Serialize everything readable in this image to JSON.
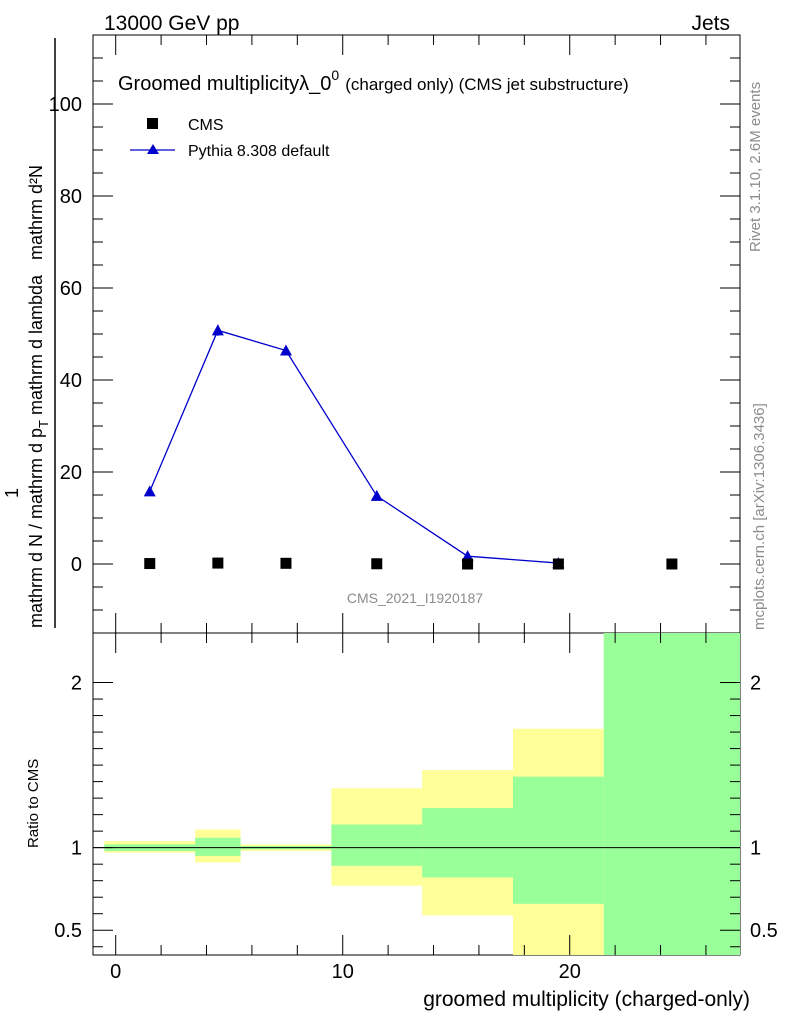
{
  "header": {
    "left": "13000 GeV pp",
    "right": "Jets"
  },
  "side_labels": {
    "rivet": "Rivet 3.1.10,  2.6M events",
    "mcplots": "mcplots.cern.ch [arXiv:1306.3436]"
  },
  "watermark": "CMS_2021_I1920187",
  "chart_data": [
    {
      "type": "line",
      "title_main": "Groomed multiplicityλ_0",
      "title_sup": "0",
      "title_small": "(charged only) (CMS jet substructure)",
      "ylabel_numerator": "mathrm d²N",
      "ylabel_den_lower": "mathrm d N / mathrm d p",
      "ylabel_den_upper": "mathrm d p",
      "ylabel_den_sub": "T",
      "ylabel_den_tail": "mathrm d lambda",
      "ylabel_den_mid": "mathrm d p",
      "ylabel_den_mid_sub": "T",
      "ylabel_den_mid_tail": " mathrm d lambda",
      "ylabel_one": "1",
      "xlim": [
        -1,
        27.5
      ],
      "ylim": [
        -15,
        115
      ],
      "yticks": [
        0,
        20,
        40,
        60,
        80,
        100
      ],
      "yticklabels": [
        "0",
        "20",
        "40",
        "60",
        "80",
        "100"
      ],
      "legend_position": "top-left",
      "series": [
        {
          "name": "CMS",
          "marker": "square",
          "color": "#000000",
          "x": [
            1.5,
            4.5,
            7.5,
            11.5,
            15.5,
            19.5,
            24.5
          ],
          "y": [
            0.1,
            0.2,
            0.15,
            0.05,
            0.0,
            0.0,
            0.0
          ]
        },
        {
          "name": "Pythia 8.308 default",
          "marker": "triangle",
          "color": "#0000cc",
          "x": [
            1.5,
            4.5,
            7.5,
            11.5,
            15.5,
            19.5
          ],
          "y": [
            15.8,
            50.8,
            46.4,
            14.8,
            1.7,
            0.2
          ]
        }
      ]
    },
    {
      "type": "area",
      "ylabel": "Ratio to CMS",
      "xlabel": "groomed multiplicity (charged-only)",
      "xlim": [
        -1,
        27.5
      ],
      "ylim": [
        0.35,
        2.3
      ],
      "xticks": [
        0,
        10,
        20
      ],
      "xticklabels": [
        "0",
        "10",
        "20"
      ],
      "yticks": [
        0.5,
        1,
        2
      ],
      "yticklabels": [
        "0.5",
        "1",
        "2"
      ],
      "reference": 1,
      "bands_yellow": [
        {
          "x0": -0.5,
          "x1": 3.5,
          "lo": 0.97,
          "hi": 1.04
        },
        {
          "x0": 3.5,
          "x1": 5.5,
          "lo": 0.91,
          "hi": 1.11
        },
        {
          "x0": 5.5,
          "x1": 9.5,
          "lo": 0.98,
          "hi": 1.02
        },
        {
          "x0": 9.5,
          "x1": 13.5,
          "lo": 0.77,
          "hi": 1.36
        },
        {
          "x0": 13.5,
          "x1": 17.5,
          "lo": 0.59,
          "hi": 1.47
        },
        {
          "x0": 17.5,
          "x1": 21.5,
          "lo": 0.35,
          "hi": 1.72
        },
        {
          "x0": 21.5,
          "x1": 27.5,
          "lo": 0.35,
          "hi": 2.3
        }
      ],
      "bands_green": [
        {
          "x0": -0.5,
          "x1": 3.5,
          "lo": 0.98,
          "hi": 1.02
        },
        {
          "x0": 3.5,
          "x1": 5.5,
          "lo": 0.95,
          "hi": 1.06
        },
        {
          "x0": 5.5,
          "x1": 9.5,
          "lo": 0.99,
          "hi": 1.01
        },
        {
          "x0": 9.5,
          "x1": 13.5,
          "lo": 0.89,
          "hi": 1.14
        },
        {
          "x0": 13.5,
          "x1": 17.5,
          "lo": 0.82,
          "hi": 1.24
        },
        {
          "x0": 17.5,
          "x1": 21.5,
          "lo": 0.66,
          "hi": 1.43
        },
        {
          "x0": 21.5,
          "x1": 27.5,
          "lo": 0.35,
          "hi": 2.3
        }
      ],
      "colors": {
        "yellow": "#ffff99",
        "green": "#99ff99"
      }
    }
  ]
}
